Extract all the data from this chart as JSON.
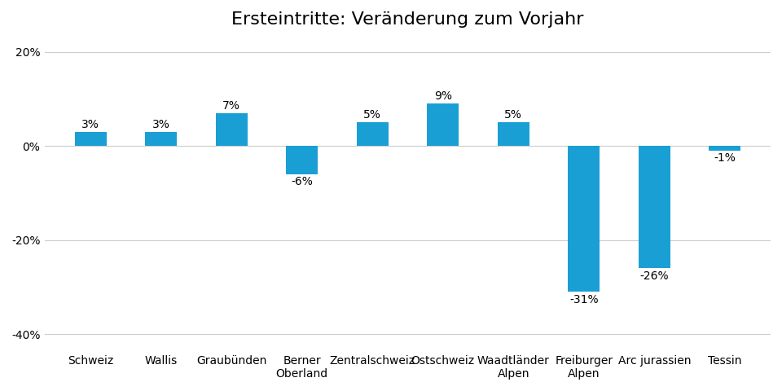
{
  "title": "Ersteintritte: Veränderung zum Vorjahr",
  "categories": [
    "Schweiz",
    "Wallis",
    "Graubünden",
    "Berner\nOberland",
    "Zentralschweiz",
    "Ostschweiz",
    "Waadtländer\nAlpen",
    "Freiburger\nAlpen",
    "Arc jurassien",
    "Tessin"
  ],
  "values": [
    3,
    3,
    7,
    -6,
    5,
    9,
    5,
    -31,
    -26,
    -1
  ],
  "bar_color": "#1a9fd4",
  "background_color": "#ffffff",
  "plot_background_color": "#ffffff",
  "grid_color": "#cccccc",
  "ylim": [
    -43,
    23
  ],
  "yticks": [
    -40,
    -20,
    0,
    20
  ],
  "ytick_labels": [
    "-40%",
    "-20%",
    "0%",
    "20%"
  ],
  "title_fontsize": 16,
  "tick_fontsize": 10,
  "annotation_fontsize": 10,
  "bar_width": 0.45
}
